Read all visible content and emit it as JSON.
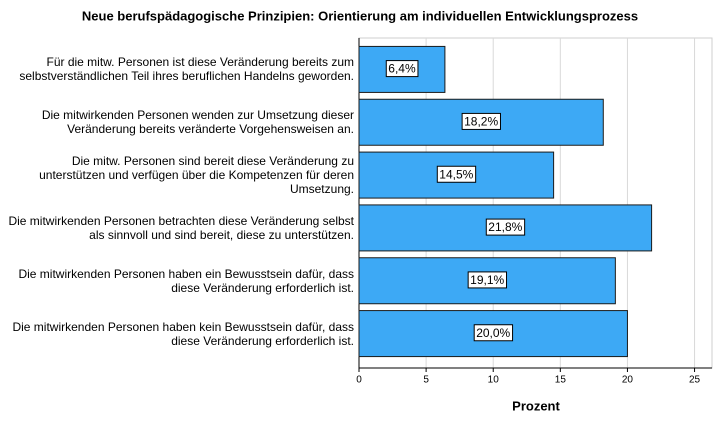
{
  "chart_data": {
    "type": "bar",
    "orientation": "horizontal",
    "title": "Neue berufspädagogische Prinzipien: Orientierung am individuellen Entwicklungsprozess",
    "categories": [
      "Für die mitw. Personen ist diese Veränderung bereits zum selbstverständlichen Teil ihres beruflichen Handelns geworden.",
      "Die mitwirkenden Personen wenden zur Umsetzung dieser Veränderung bereits veränderte Vorgehensweisen an.",
      "Die mitw. Personen sind bereit diese Veränderung zu unterstützen und verfügen über die Kompetenzen für deren Umsetzung.",
      "Die mitwirkenden Personen betrachten diese Veränderung selbst als sinnvoll und sind bereit, diese zu unterstützen.",
      "Die mitwirkenden Personen haben ein Bewusstsein dafür, dass diese Veränderung erforderlich ist.",
      "Die mitwirkenden Personen haben kein Bewusstsein dafür, dass diese Veränderung erforderlich ist."
    ],
    "values": [
      6.4,
      18.2,
      14.5,
      21.8,
      19.1,
      20.0
    ],
    "value_labels": [
      "6,4%",
      "18,2%",
      "14,5%",
      "21,8%",
      "19,1%",
      "20,0%"
    ],
    "color": "#3da9f5",
    "xlabel": "Prozent",
    "xlim": [
      0,
      26.3
    ],
    "xticks": [
      0,
      5,
      10,
      15,
      20,
      25
    ],
    "grid": true
  }
}
